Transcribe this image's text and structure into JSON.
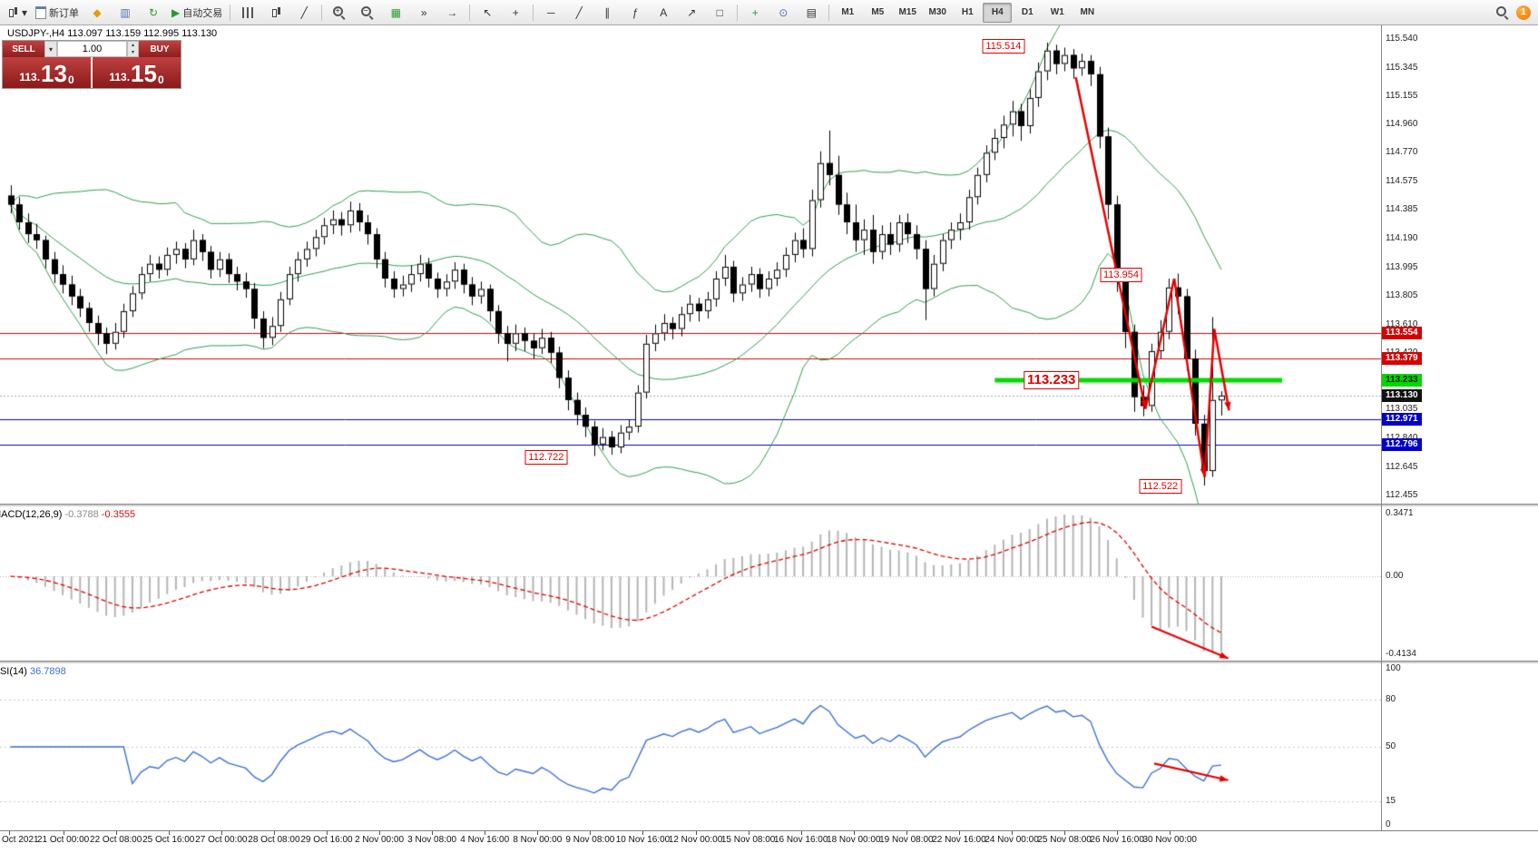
{
  "toolbar": {
    "new_order_label": "新订单",
    "autotrading_label": "自动交易",
    "timeframes": [
      "M1",
      "M5",
      "M15",
      "M30",
      "H1",
      "H4",
      "D1",
      "W1",
      "MN"
    ],
    "active_timeframe": "H4",
    "notification_count": "1",
    "icons": {
      "dropdown": "▾",
      "market": "◆",
      "profiles": "▥",
      "refresh": "↻",
      "play": "▶",
      "line_chart": "╱",
      "plus": "+",
      "minus": "−",
      "tile": "▦",
      "autoscroll": "»",
      "shift": "→",
      "cursor": "↖",
      "crosshair": "+",
      "line_h": "─",
      "line_trend": "╱",
      "channel": "∥",
      "fibo": "ƒ",
      "text_tool": "A",
      "arrow_tool": "↗",
      "shapes": "□",
      "periods": "⊙",
      "template": "▤"
    }
  },
  "one_click": {
    "sell_label": "SELL",
    "buy_label": "BUY",
    "volume": "1.00",
    "bid": {
      "small": "113.",
      "big": "13",
      "sup": "0"
    },
    "ask": {
      "small": "113.",
      "big": "15",
      "sup": "0"
    }
  },
  "header": {
    "ohlc_line": "USDJPY-,H4  113.097 113.159 112.995 113.130"
  },
  "macd": {
    "name": "MACD(12,26,9)",
    "value_main": "-0.3788",
    "value_signal": "-0.3555",
    "scale": [
      "0.3471",
      "0.00",
      "-0.4134"
    ],
    "fast": 12,
    "slow": 26,
    "signal": 9
  },
  "rsi": {
    "name": "RSI(14)",
    "value": "36.7898",
    "period": 14,
    "scale": [
      "100",
      "80",
      "50",
      "15",
      "0"
    ],
    "levels": [
      80,
      50,
      15
    ]
  },
  "chart_data": {
    "type": "candlestick",
    "title": "USDJPY H4",
    "y_range": [
      112.4,
      115.63
    ],
    "price_scale": [
      "115.540",
      "115.345",
      "115.155",
      "114.960",
      "114.770",
      "114.575",
      "114.385",
      "114.190",
      "113.995",
      "113.805",
      "113.610",
      "113.420",
      "113.225",
      "113.035",
      "112.840",
      "112.645",
      "112.455"
    ],
    "time_labels": [
      "Oct 2021",
      "21 Oct 00:00",
      "22 Oct 08:00",
      "25 Oct 16:00",
      "27 Oct 00:00",
      "28 Oct 08:00",
      "29 Oct 16:00",
      "2 Nov 00:00",
      "3 Nov 08:00",
      "4 Nov 16:00",
      "8 Nov 00:00",
      "9 Nov 08:00",
      "10 Nov 16:00",
      "12 Nov 00:00",
      "15 Nov 08:00",
      "16 Nov 16:00",
      "18 Nov 00:00",
      "19 Nov 08:00",
      "22 Nov 16:00",
      "24 Nov 00:00",
      "25 Nov 08:00",
      "26 Nov 16:00",
      "30 Nov 00:00"
    ],
    "bollinger": {
      "period": 20,
      "deviation": 2
    },
    "levels": {
      "red": [
        113.554,
        113.379
      ],
      "blue": [
        112.971,
        112.796
      ],
      "green": {
        "price": 113.233,
        "from": 113,
        "to": 146
      },
      "current": 113.13
    },
    "badges": [
      {
        "text": "113.554",
        "bg": "#d60000",
        "fg": "#ffffff"
      },
      {
        "text": "113.379",
        "bg": "#d60000",
        "fg": "#ffffff"
      },
      {
        "text": "113.233",
        "bg": "#00d800",
        "fg": "#002200"
      },
      {
        "text": "113.130",
        "bg": "#111111",
        "fg": "#ffffff"
      },
      {
        "text": "112.971",
        "bg": "#0000c8",
        "fg": "#ffffff"
      },
      {
        "text": "112.796",
        "bg": "#0000c8",
        "fg": "#ffffff"
      }
    ],
    "annotations": [
      {
        "text": "115.514",
        "i": 114.0,
        "price": 115.49,
        "large": false
      },
      {
        "text": "113.954",
        "i": 127.5,
        "price": 113.945,
        "large": false
      },
      {
        "text": "113.233",
        "i": 119.5,
        "price": 113.233,
        "large": true
      },
      {
        "text": "112.722",
        "i": 61.5,
        "price": 112.715,
        "large": false
      },
      {
        "text": "112.522",
        "i": 132.0,
        "price": 112.515,
        "large": false
      }
    ],
    "arrows_main": [
      {
        "pts": [
          [
            122.3,
            115.28
          ],
          [
            130.3,
            113.04
          ]
        ],
        "head": true
      },
      {
        "pts": [
          [
            130.3,
            113.04
          ],
          [
            133.6,
            113.92
          ]
        ],
        "head": false
      },
      {
        "pts": [
          [
            133.6,
            113.92
          ],
          [
            137.1,
            112.58
          ]
        ],
        "head": true
      },
      {
        "pts": [
          [
            137.1,
            112.58
          ],
          [
            138.2,
            113.58
          ]
        ],
        "head": false
      },
      {
        "pts": [
          [
            138.2,
            113.58
          ],
          [
            139.9,
            113.03
          ]
        ],
        "head": true
      }
    ],
    "arrow_macd": [
      [
        131,
        0.78
      ],
      [
        139.8,
        0.985
      ]
    ],
    "arrow_rsi": [
      [
        131.3,
        0.6
      ],
      [
        139.8,
        0.7
      ]
    ],
    "ohlc": [
      [
        114.48,
        114.55,
        114.36,
        114.42
      ],
      [
        114.42,
        114.47,
        114.25,
        114.3
      ],
      [
        114.3,
        114.36,
        114.16,
        114.22
      ],
      [
        114.22,
        114.29,
        114.12,
        114.18
      ],
      [
        114.18,
        114.21,
        113.99,
        114.05
      ],
      [
        114.05,
        114.1,
        113.89,
        113.95
      ],
      [
        113.95,
        114.01,
        113.82,
        113.88
      ],
      [
        113.88,
        113.94,
        113.74,
        113.8
      ],
      [
        113.8,
        113.85,
        113.66,
        113.72
      ],
      [
        113.72,
        113.76,
        113.56,
        113.62
      ],
      [
        113.62,
        113.67,
        113.47,
        113.55
      ],
      [
        113.55,
        113.59,
        113.41,
        113.48
      ],
      [
        113.48,
        113.62,
        113.44,
        113.56
      ],
      [
        113.56,
        113.75,
        113.52,
        113.7
      ],
      [
        113.7,
        113.87,
        113.66,
        113.82
      ],
      [
        113.82,
        114.0,
        113.78,
        113.95
      ],
      [
        113.95,
        114.08,
        113.9,
        114.02
      ],
      [
        114.02,
        114.07,
        113.92,
        113.98
      ],
      [
        113.98,
        114.13,
        113.94,
        114.08
      ],
      [
        114.08,
        114.17,
        114.02,
        114.12
      ],
      [
        114.12,
        114.16,
        113.99,
        114.05
      ],
      [
        114.05,
        114.25,
        114.01,
        114.18
      ],
      [
        114.18,
        114.22,
        114.04,
        114.1
      ],
      [
        114.1,
        114.14,
        113.92,
        113.98
      ],
      [
        113.98,
        114.1,
        113.93,
        114.05
      ],
      [
        114.05,
        114.09,
        113.89,
        113.95
      ],
      [
        113.95,
        114.0,
        113.84,
        113.9
      ],
      [
        113.9,
        113.96,
        113.79,
        113.85
      ],
      [
        113.85,
        113.89,
        113.58,
        113.65
      ],
      [
        113.65,
        113.7,
        113.45,
        113.52
      ],
      [
        113.52,
        113.66,
        113.47,
        113.6
      ],
      [
        113.6,
        113.83,
        113.56,
        113.78
      ],
      [
        113.78,
        114.0,
        113.74,
        113.95
      ],
      [
        113.95,
        114.1,
        113.9,
        114.05
      ],
      [
        114.05,
        114.17,
        114.0,
        114.12
      ],
      [
        114.12,
        114.25,
        114.07,
        114.2
      ],
      [
        114.2,
        114.33,
        114.15,
        114.28
      ],
      [
        114.28,
        114.38,
        114.22,
        114.32
      ],
      [
        114.32,
        114.37,
        114.21,
        114.28
      ],
      [
        114.28,
        114.44,
        114.23,
        114.38
      ],
      [
        114.38,
        114.43,
        114.24,
        114.3
      ],
      [
        114.3,
        114.35,
        114.15,
        114.22
      ],
      [
        114.22,
        114.26,
        113.99,
        114.05
      ],
      [
        114.05,
        114.1,
        113.86,
        113.92
      ],
      [
        113.92,
        113.97,
        113.79,
        113.85
      ],
      [
        113.85,
        113.94,
        113.8,
        113.88
      ],
      [
        113.88,
        114.01,
        113.83,
        113.95
      ],
      [
        113.95,
        114.08,
        113.9,
        114.02
      ],
      [
        114.02,
        114.06,
        113.86,
        113.92
      ],
      [
        113.92,
        113.96,
        113.79,
        113.85
      ],
      [
        113.85,
        113.95,
        113.8,
        113.9
      ],
      [
        113.9,
        114.03,
        113.85,
        113.98
      ],
      [
        113.98,
        114.02,
        113.82,
        113.88
      ],
      [
        113.88,
        113.93,
        113.74,
        113.8
      ],
      [
        113.8,
        113.9,
        113.75,
        113.85
      ],
      [
        113.85,
        113.88,
        113.63,
        113.7
      ],
      [
        113.7,
        113.74,
        113.48,
        113.55
      ],
      [
        113.55,
        113.6,
        113.36,
        113.48
      ],
      [
        113.48,
        113.61,
        113.43,
        113.55
      ],
      [
        113.55,
        113.59,
        113.43,
        113.5
      ],
      [
        113.5,
        113.55,
        113.38,
        113.45
      ],
      [
        113.45,
        113.58,
        113.41,
        113.52
      ],
      [
        113.52,
        113.56,
        113.35,
        113.42
      ],
      [
        113.42,
        113.46,
        113.18,
        113.25
      ],
      [
        113.25,
        113.3,
        113.03,
        113.1
      ],
      [
        113.1,
        113.15,
        112.93,
        113.0
      ],
      [
        113.0,
        113.05,
        112.85,
        112.92
      ],
      [
        112.92,
        112.96,
        112.722,
        112.8
      ],
      [
        112.8,
        112.91,
        112.76,
        112.85
      ],
      [
        112.85,
        112.89,
        112.73,
        112.78
      ],
      [
        112.78,
        112.93,
        112.74,
        112.88
      ],
      [
        112.88,
        112.97,
        112.83,
        112.92
      ],
      [
        112.92,
        113.2,
        112.88,
        113.15
      ],
      [
        113.15,
        113.54,
        113.11,
        113.48
      ],
      [
        113.48,
        113.61,
        113.43,
        113.55
      ],
      [
        113.55,
        113.68,
        113.5,
        113.62
      ],
      [
        113.62,
        113.66,
        113.51,
        113.58
      ],
      [
        113.58,
        113.73,
        113.53,
        113.68
      ],
      [
        113.68,
        113.81,
        113.63,
        113.75
      ],
      [
        113.75,
        113.79,
        113.63,
        113.7
      ],
      [
        113.7,
        113.83,
        113.65,
        113.78
      ],
      [
        113.78,
        113.97,
        113.73,
        113.92
      ],
      [
        113.92,
        114.08,
        113.87,
        114.0
      ],
      [
        114.0,
        114.04,
        113.76,
        113.82
      ],
      [
        113.82,
        113.93,
        113.77,
        113.88
      ],
      [
        113.88,
        114.0,
        113.83,
        113.95
      ],
      [
        113.95,
        113.99,
        113.79,
        113.85
      ],
      [
        113.85,
        113.97,
        113.8,
        113.92
      ],
      [
        113.92,
        114.03,
        113.87,
        113.98
      ],
      [
        113.98,
        114.13,
        113.93,
        114.08
      ],
      [
        114.08,
        114.23,
        114.03,
        114.18
      ],
      [
        114.18,
        114.26,
        114.06,
        114.12
      ],
      [
        114.12,
        114.52,
        114.07,
        114.45
      ],
      [
        114.45,
        114.78,
        114.4,
        114.7
      ],
      [
        114.7,
        114.92,
        114.55,
        114.62
      ],
      [
        114.62,
        114.75,
        114.35,
        114.42
      ],
      [
        114.42,
        114.5,
        114.22,
        114.3
      ],
      [
        114.3,
        114.42,
        114.1,
        114.18
      ],
      [
        114.18,
        114.32,
        114.08,
        114.25
      ],
      [
        114.25,
        114.35,
        114.02,
        114.1
      ],
      [
        114.1,
        114.28,
        114.05,
        114.22
      ],
      [
        114.22,
        114.3,
        114.08,
        114.15
      ],
      [
        114.15,
        114.35,
        114.1,
        114.3
      ],
      [
        114.3,
        114.36,
        114.16,
        114.22
      ],
      [
        114.22,
        114.28,
        114.05,
        114.12
      ],
      [
        114.12,
        114.18,
        113.64,
        113.85
      ],
      [
        113.85,
        114.08,
        113.8,
        114.02
      ],
      [
        114.02,
        114.22,
        113.97,
        114.18
      ],
      [
        114.18,
        114.3,
        114.12,
        114.25
      ],
      [
        114.25,
        114.36,
        114.18,
        114.3
      ],
      [
        114.3,
        114.52,
        114.25,
        114.47
      ],
      [
        114.47,
        114.67,
        114.42,
        114.62
      ],
      [
        114.62,
        114.82,
        114.57,
        114.77
      ],
      [
        114.77,
        114.93,
        114.72,
        114.87
      ],
      [
        114.87,
        115.02,
        114.8,
        114.96
      ],
      [
        114.96,
        115.12,
        114.88,
        115.05
      ],
      [
        115.05,
        115.1,
        114.85,
        114.95
      ],
      [
        114.95,
        115.2,
        114.9,
        115.14
      ],
      [
        115.14,
        115.38,
        115.08,
        115.32
      ],
      [
        115.32,
        115.514,
        115.26,
        115.46
      ],
      [
        115.46,
        115.5,
        115.3,
        115.37
      ],
      [
        115.37,
        115.48,
        115.32,
        115.43
      ],
      [
        115.43,
        115.47,
        115.27,
        115.34
      ],
      [
        115.34,
        115.44,
        115.29,
        115.39
      ],
      [
        115.39,
        115.43,
        115.22,
        115.3
      ],
      [
        115.3,
        115.35,
        114.8,
        114.88
      ],
      [
        114.88,
        114.94,
        114.32,
        114.42
      ],
      [
        114.42,
        114.48,
        113.83,
        113.93
      ],
      [
        113.93,
        113.99,
        113.45,
        113.56
      ],
      [
        113.56,
        113.61,
        113.02,
        113.12
      ],
      [
        113.12,
        113.2,
        112.99,
        113.06
      ],
      [
        113.06,
        113.48,
        113.02,
        113.43
      ],
      [
        113.43,
        113.64,
        113.38,
        113.56
      ],
      [
        113.56,
        113.92,
        113.51,
        113.86
      ],
      [
        113.86,
        113.954,
        113.68,
        113.8
      ],
      [
        113.8,
        113.85,
        113.3,
        113.38
      ],
      [
        113.38,
        113.44,
        112.86,
        112.94
      ],
      [
        112.94,
        113.0,
        112.522,
        112.62
      ],
      [
        112.62,
        113.66,
        112.58,
        113.1
      ],
      [
        113.097,
        113.159,
        112.995,
        113.13
      ]
    ]
  }
}
